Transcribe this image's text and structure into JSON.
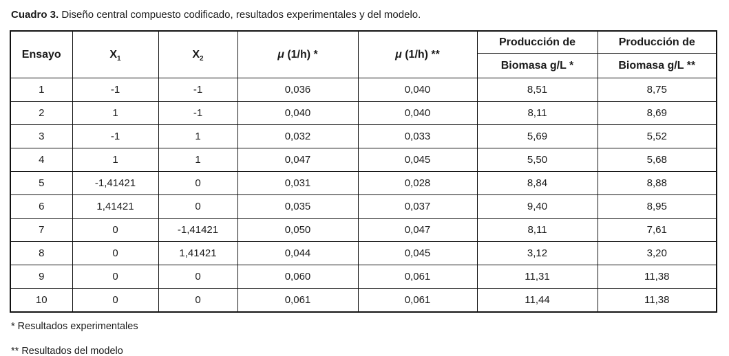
{
  "page": {
    "title_label": "Cuadro 3.",
    "title_text": " Diseño central compuesto codificado, resultados experimentales y del modelo."
  },
  "table": {
    "headers": {
      "ensayo": "Ensayo",
      "x_base": "X",
      "x1_sub": "1",
      "x2_sub": "2",
      "mu_symbol": "μ",
      "mu1_rest": " (1/h) *",
      "mu2_rest": " (1/h) **",
      "prod_top": "Producción de",
      "prod1_bottom": "Biomasa g/L *",
      "prod2_bottom": "Biomasa g/L **"
    },
    "rows": [
      [
        "1",
        "-1",
        "-1",
        "0,036",
        "0,040",
        "8,51",
        "8,75"
      ],
      [
        "2",
        "1",
        "-1",
        "0,040",
        "0,040",
        "8,11",
        "8,69"
      ],
      [
        "3",
        "-1",
        "1",
        "0,032",
        "0,033",
        "5,69",
        "5,52"
      ],
      [
        "4",
        "1",
        "1",
        "0,047",
        "0,045",
        "5,50",
        "5,68"
      ],
      [
        "5",
        "-1,41421",
        "0",
        "0,031",
        "0,028",
        "8,84",
        "8,88"
      ],
      [
        "6",
        "1,41421",
        "0",
        "0,035",
        "0,037",
        "9,40",
        "8,95"
      ],
      [
        "7",
        "0",
        "-1,41421",
        "0,050",
        "0,047",
        "8,11",
        "7,61"
      ],
      [
        "8",
        "0",
        "1,41421",
        "0,044",
        "0,045",
        "3,12",
        "3,20"
      ],
      [
        "9",
        "0",
        "0",
        "0,060",
        "0,061",
        "11,31",
        "11,38"
      ],
      [
        "10",
        "0",
        "0",
        "0,061",
        "0,061",
        "11,44",
        "11,38"
      ]
    ],
    "footnotes": [
      "* Resultados experimentales",
      "** Resultados del modelo"
    ]
  }
}
